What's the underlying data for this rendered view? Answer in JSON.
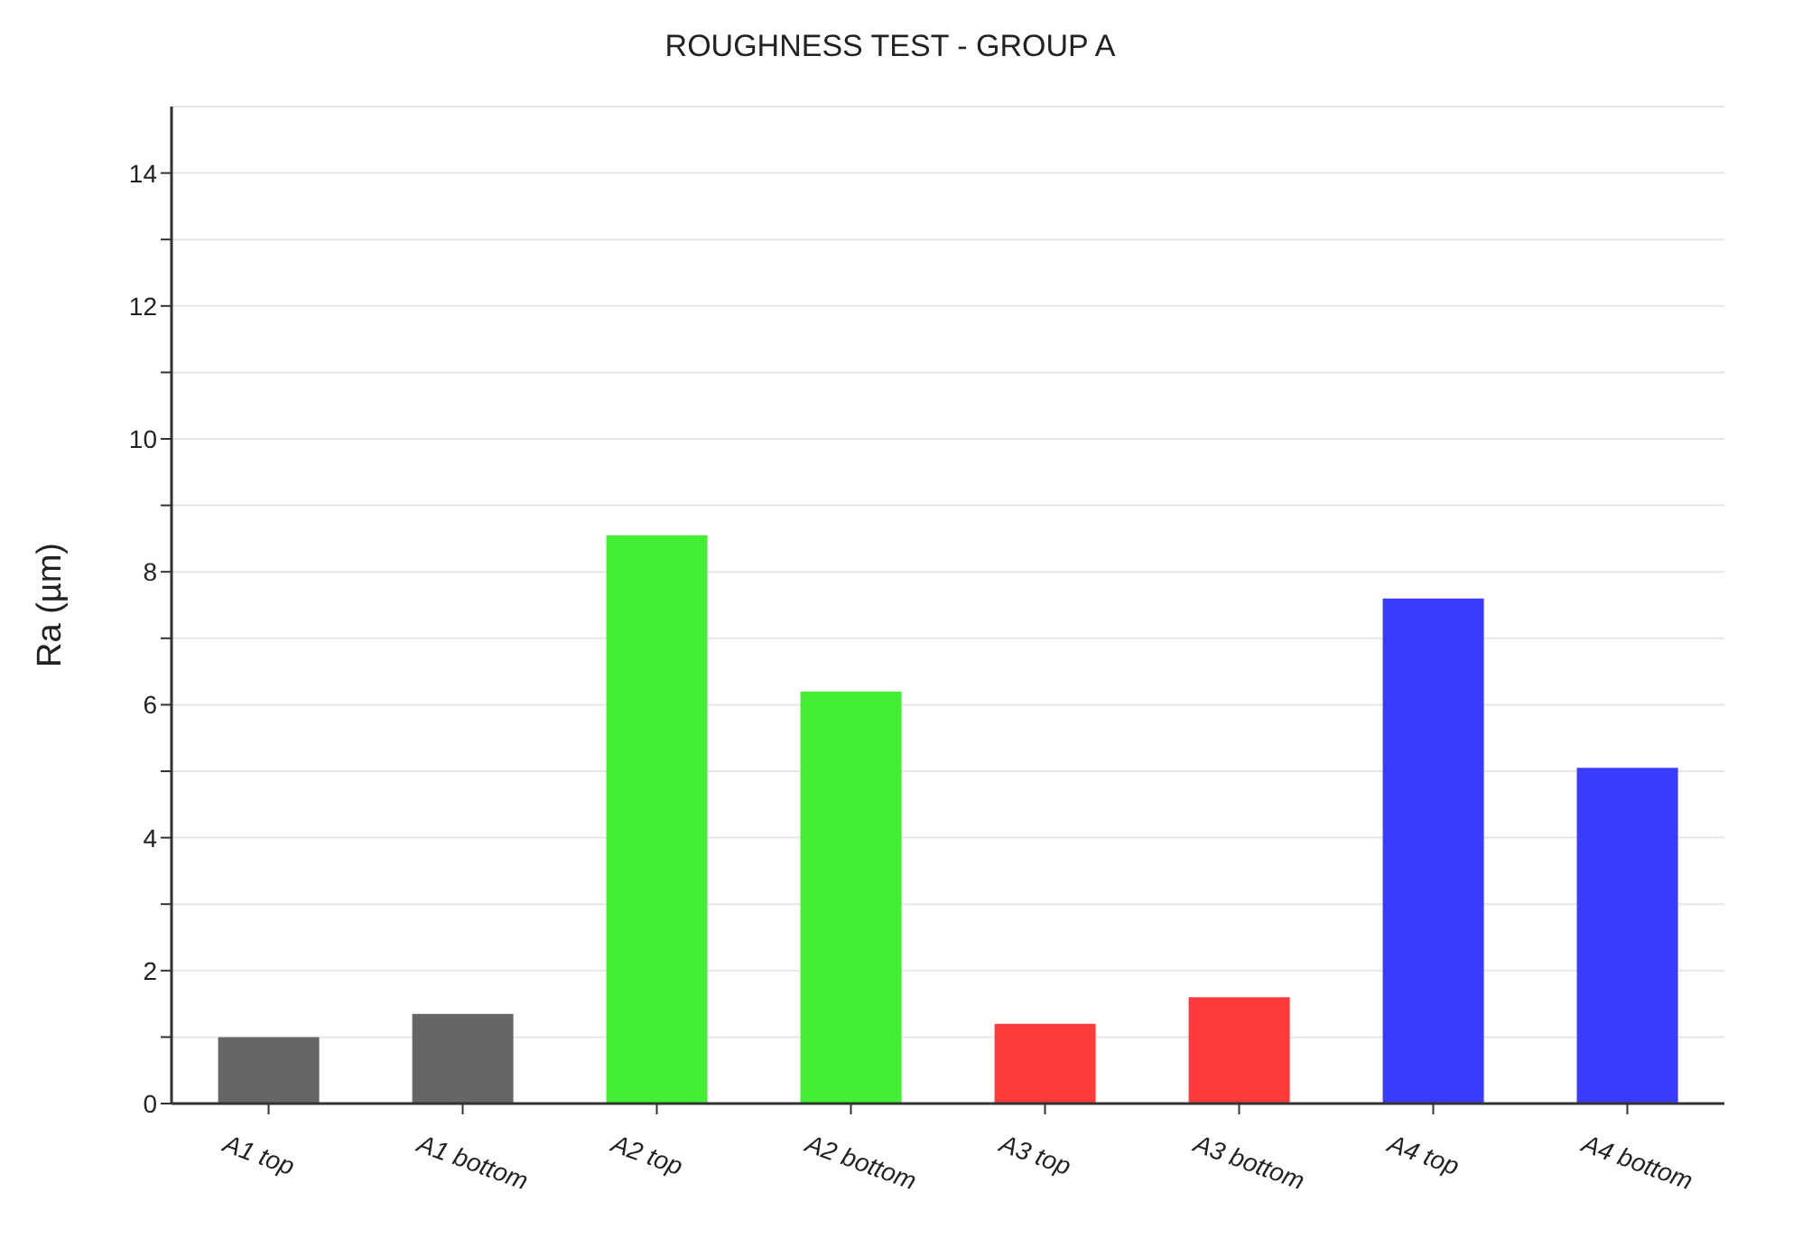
{
  "chart_data": {
    "type": "bar",
    "title": "ROUGHNESS TEST - GROUP A",
    "ylabel": "Ra (µm)",
    "categories": [
      "A1 top",
      "A1 bottom",
      "A2 top",
      "A2 bottom",
      "A3 top",
      "A3 bottom",
      "A4 top",
      "A4 bottom"
    ],
    "values": [
      1.0,
      1.35,
      8.55,
      6.2,
      1.2,
      1.6,
      7.6,
      5.05
    ],
    "colors": [
      "#666666",
      "#666666",
      "#44ee33",
      "#44ee33",
      "#ff3a3a",
      "#ff3a3a",
      "#3b3bff",
      "#3b3bff"
    ],
    "ylim": [
      0,
      15
    ],
    "yticks": [
      0,
      {
        "value": 1,
        "label": null
      },
      2,
      {
        "value": 3,
        "label": null
      },
      4,
      {
        "value": 5,
        "label": null
      },
      6,
      {
        "value": 7,
        "label": null
      },
      8,
      {
        "value": 9,
        "label": null
      },
      10,
      {
        "value": 11,
        "label": null
      },
      12,
      {
        "value": 13,
        "label": null
      },
      14
    ],
    "grid": "y"
  }
}
